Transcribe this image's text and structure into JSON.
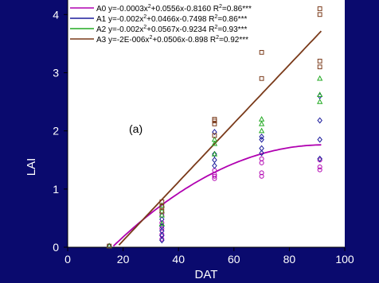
{
  "chart_data": {
    "type": "scatter",
    "panel_label": "(a)",
    "xlabel": "DAT",
    "ylabel": "LAI",
    "xlim": [
      0,
      100
    ],
    "ylim": [
      0,
      4
    ],
    "xticks": [
      0,
      20,
      40,
      60,
      80,
      100
    ],
    "yticks": [
      0,
      1,
      2,
      3,
      4
    ],
    "grid": false,
    "legend_position": "top",
    "colors": {
      "background": "#0a0a6e",
      "plot_area": "#ffffff",
      "axis_text": "#ffffff"
    },
    "series": [
      {
        "name": "A0",
        "equation_parts": [
          "A0 y=-0.0003x",
          "2",
          "+0.0556x-0.8160 R",
          "2",
          "=0.86***"
        ],
        "coef": [
          -0.0003,
          0.0556,
          -0.816
        ],
        "color": "#b000b0",
        "marker": "circle",
        "x": [
          15,
          34,
          34,
          34,
          34,
          34,
          53,
          53,
          53,
          53,
          70,
          70,
          70,
          70,
          91,
          91,
          91
        ],
        "y": [
          0.02,
          0.14,
          0.22,
          0.32,
          0.42,
          0.55,
          1.18,
          1.22,
          1.25,
          1.32,
          1.22,
          1.28,
          1.45,
          1.52,
          1.33,
          1.38,
          1.5
        ]
      },
      {
        "name": "A1",
        "equation_parts": [
          "A1 y=-0.002x",
          "2",
          "+0.0466x-0.7498 R",
          "2",
          "=0.86***"
        ],
        "coef": [
          -0.002,
          0.0466,
          -0.7498
        ],
        "color": "#1c1c9c",
        "marker": "diamond",
        "x": [
          15,
          34,
          34,
          34,
          34,
          34,
          53,
          53,
          53,
          53,
          70,
          70,
          70,
          70,
          91,
          91,
          91,
          91
        ],
        "y": [
          0.02,
          0.12,
          0.2,
          0.28,
          0.36,
          0.48,
          1.4,
          1.5,
          1.6,
          1.98,
          1.62,
          1.7,
          1.85,
          1.9,
          1.52,
          1.85,
          2.18,
          2.6
        ]
      },
      {
        "name": "A2",
        "equation_parts": [
          "A2 y=-0.002x",
          "2",
          "+0.0567x-0.9234 R",
          "2",
          "=0.93***"
        ],
        "coef": [
          -0.002,
          0.0567,
          -0.9234
        ],
        "color": "#22aa22",
        "marker": "triangle",
        "x": [
          15,
          34,
          34,
          34,
          34,
          53,
          53,
          53,
          70,
          70,
          70,
          91,
          91,
          91
        ],
        "y": [
          0.02,
          0.4,
          0.55,
          0.62,
          0.72,
          1.6,
          1.78,
          1.85,
          2.0,
          2.12,
          2.2,
          2.5,
          2.62,
          2.9
        ]
      },
      {
        "name": "A3",
        "equation_parts": [
          "A3 y=-2E-006x",
          "2",
          "+0.0506x-0.898 R",
          "2",
          "=0.92***"
        ],
        "coef": [
          -2e-06,
          0.0506,
          -0.898
        ],
        "color": "#7a3a1a",
        "marker": "square",
        "x": [
          15,
          34,
          34,
          34,
          53,
          53,
          53,
          53,
          70,
          70,
          91,
          91,
          91,
          91
        ],
        "y": [
          0.02,
          0.62,
          0.7,
          0.78,
          1.92,
          2.12,
          2.17,
          2.2,
          2.9,
          3.35,
          3.1,
          3.2,
          4.0,
          4.1
        ]
      }
    ]
  }
}
